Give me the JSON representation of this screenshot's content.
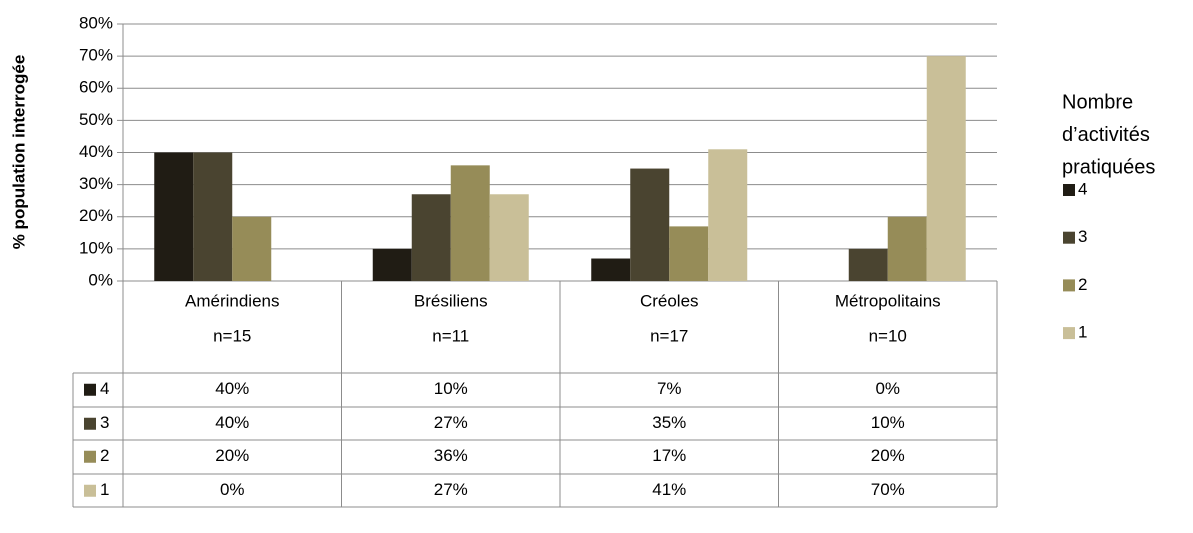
{
  "chart_data": {
    "type": "bar",
    "y_label": "% population interrogée",
    "categories": [
      "Amérindiens",
      "Brésiliens",
      "Créoles",
      "Métropolitains"
    ],
    "category_counts": [
      "n=15",
      "n=11",
      "n=17",
      "n=10"
    ],
    "legend_title": [
      "Nombre",
      "d’activités",
      "pratiquées"
    ],
    "legend_position": "right",
    "grid": true,
    "ylim": [
      0,
      80
    ],
    "yticks": [
      {
        "value": 0,
        "label": "0%"
      },
      {
        "value": 10,
        "label": "10%"
      },
      {
        "value": 20,
        "label": "20%"
      },
      {
        "value": 30,
        "label": "30%"
      },
      {
        "value": 40,
        "label": "40%"
      },
      {
        "value": 50,
        "label": "50%"
      },
      {
        "value": 60,
        "label": "60%"
      },
      {
        "value": 70,
        "label": "70%"
      },
      {
        "value": 80,
        "label": "80%"
      }
    ],
    "series": [
      {
        "name": "4",
        "color": "#201c14",
        "values": [
          40,
          10,
          7,
          0
        ],
        "value_labels": [
          "40%",
          "10%",
          "7%",
          "0%"
        ]
      },
      {
        "name": "3",
        "color": "#4a4430",
        "values": [
          40,
          27,
          35,
          10
        ],
        "value_labels": [
          "40%",
          "27%",
          "35%",
          "10%"
        ]
      },
      {
        "name": "2",
        "color": "#968c58",
        "values": [
          20,
          36,
          17,
          20
        ],
        "value_labels": [
          "20%",
          "36%",
          "17%",
          "20%"
        ]
      },
      {
        "name": "1",
        "color": "#c9bf98",
        "values": [
          0,
          27,
          41,
          70
        ],
        "value_labels": [
          "0%",
          "27%",
          "41%",
          "70%"
        ]
      }
    ]
  }
}
